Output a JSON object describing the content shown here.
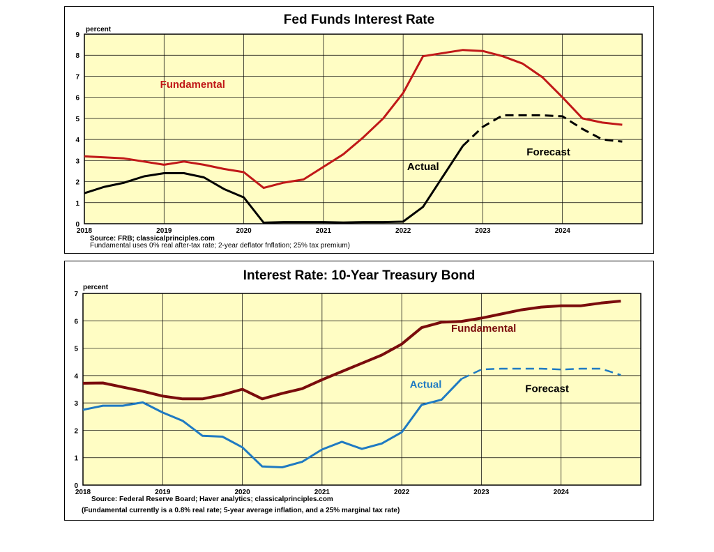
{
  "chart_data": [
    {
      "type": "line",
      "title": "Fed Funds Interest Rate",
      "ylabel": "percent",
      "ylim": [
        0,
        9
      ],
      "yticks": [
        0,
        1,
        2,
        3,
        4,
        5,
        6,
        7,
        8,
        9
      ],
      "xlim": [
        2018,
        2025
      ],
      "xticks": [
        2018,
        2019,
        2020,
        2021,
        2022,
        2023,
        2024
      ],
      "grid": true,
      "colors": {
        "background": "#fffdc4",
        "fundamental": "#c01818",
        "actual": "#000000",
        "forecast": "#000000"
      },
      "series": [
        {
          "name": "Fundamental",
          "x": [
            2018.0,
            2018.25,
            2018.5,
            2018.75,
            2019.0,
            2019.25,
            2019.5,
            2019.75,
            2020.0,
            2020.25,
            2020.5,
            2020.75,
            2021.0,
            2021.25,
            2021.5,
            2021.75,
            2022.0,
            2022.25,
            2022.5,
            2022.75,
            2023.0,
            2023.25,
            2023.5,
            2023.75,
            2024.0,
            2024.25,
            2024.5,
            2024.75
          ],
          "y": [
            3.2,
            3.15,
            3.1,
            2.95,
            2.8,
            2.95,
            2.8,
            2.6,
            2.45,
            1.7,
            1.95,
            2.1,
            2.7,
            3.3,
            4.1,
            5.0,
            6.2,
            7.95,
            8.1,
            8.25,
            8.2,
            7.95,
            7.6,
            6.95,
            6.0,
            5.0,
            4.8,
            4.7
          ]
        },
        {
          "name": "Actual",
          "x": [
            2018.0,
            2018.25,
            2018.5,
            2018.75,
            2019.0,
            2019.25,
            2019.5,
            2019.75,
            2020.0,
            2020.25,
            2020.5,
            2020.75,
            2021.0,
            2021.25,
            2021.5,
            2021.75,
            2022.0,
            2022.25,
            2022.5,
            2022.75
          ],
          "y": [
            1.45,
            1.75,
            1.95,
            2.25,
            2.4,
            2.4,
            2.2,
            1.65,
            1.25,
            0.05,
            0.08,
            0.08,
            0.08,
            0.06,
            0.08,
            0.08,
            0.1,
            0.8,
            2.25,
            3.7
          ]
        },
        {
          "name": "Forecast",
          "dashed": true,
          "x": [
            2022.75,
            2023.0,
            2023.25,
            2023.5,
            2023.75,
            2024.0,
            2024.25,
            2024.5,
            2024.75
          ],
          "y": [
            3.7,
            4.6,
            5.15,
            5.15,
            5.15,
            5.1,
            4.5,
            4.0,
            3.9
          ]
        }
      ],
      "annotations": [
        {
          "text": "Fundamental",
          "x": 2018.95,
          "y": 6.45,
          "color": "#c01818"
        },
        {
          "text": "Actual",
          "x": 2022.05,
          "y": 2.55,
          "color": "#000000"
        },
        {
          "text": "Forecast",
          "x": 2023.55,
          "y": 3.25,
          "color": "#000000"
        }
      ],
      "source_lines": [
        "Source: FRB; classicalprinciples.com",
        "Fundamental uses 0% real after-tax rate; 2-year deflator fnflation; 25% tax premium)"
      ]
    },
    {
      "type": "line",
      "title": "Interest Rate: 10-Year Treasury Bond",
      "ylabel": "percent",
      "ylim": [
        0,
        7
      ],
      "yticks": [
        0,
        1,
        2,
        3,
        4,
        5,
        6,
        7
      ],
      "xlim": [
        2018,
        2025
      ],
      "xticks": [
        2018,
        2019,
        2020,
        2021,
        2022,
        2023,
        2024
      ],
      "grid": true,
      "colors": {
        "background": "#fffdc4",
        "fundamental": "#7a0c0c",
        "actual": "#1f7ac2",
        "forecast": "#1f7ac2"
      },
      "series": [
        {
          "name": "Fundamental",
          "x": [
            2018.0,
            2018.25,
            2018.5,
            2018.75,
            2019.0,
            2019.25,
            2019.5,
            2019.75,
            2020.0,
            2020.25,
            2020.5,
            2020.75,
            2021.0,
            2021.25,
            2021.5,
            2021.75,
            2022.0,
            2022.25,
            2022.5,
            2022.75,
            2023.0,
            2023.25,
            2023.5,
            2023.75,
            2024.0,
            2024.25,
            2024.5,
            2024.75
          ],
          "y": [
            3.72,
            3.73,
            3.58,
            3.43,
            3.25,
            3.15,
            3.15,
            3.3,
            3.5,
            3.15,
            3.35,
            3.52,
            3.85,
            4.15,
            4.45,
            4.75,
            5.15,
            5.75,
            5.95,
            5.98,
            6.1,
            6.25,
            6.4,
            6.5,
            6.55,
            6.55,
            6.65,
            6.72
          ]
        },
        {
          "name": "Actual",
          "x": [
            2018.0,
            2018.25,
            2018.5,
            2018.75,
            2019.0,
            2019.25,
            2019.5,
            2019.75,
            2020.0,
            2020.25,
            2020.5,
            2020.75,
            2021.0,
            2021.25,
            2021.5,
            2021.75,
            2022.0,
            2022.25,
            2022.5,
            2022.75
          ],
          "y": [
            2.75,
            2.9,
            2.9,
            3.02,
            2.65,
            2.35,
            1.8,
            1.77,
            1.38,
            0.68,
            0.65,
            0.85,
            1.3,
            1.58,
            1.32,
            1.52,
            1.93,
            2.93,
            3.12,
            3.88
          ]
        },
        {
          "name": "Forecast",
          "dashed": true,
          "x": [
            2022.75,
            2023.0,
            2023.25,
            2023.5,
            2023.75,
            2024.0,
            2024.25,
            2024.5,
            2024.75
          ],
          "y": [
            3.88,
            4.22,
            4.25,
            4.25,
            4.25,
            4.22,
            4.25,
            4.25,
            4.02
          ]
        }
      ],
      "annotations": [
        {
          "text": "Fundamental",
          "x": 2022.62,
          "y": 5.6,
          "color": "#7a0c0c"
        },
        {
          "text": "Actual",
          "x": 2022.1,
          "y": 3.55,
          "color": "#1f7ac2"
        },
        {
          "text": "Forecast",
          "x": 2023.55,
          "y": 3.4,
          "color": "#000000"
        }
      ],
      "source_lines": [
        "Source: Federal Reserve Board; Haver analytics; classicalprinciples.com",
        "(Fundamental currently is a 0.8% real rate; 5-year average inflation, and a 25%  marginal tax rate)"
      ]
    }
  ]
}
